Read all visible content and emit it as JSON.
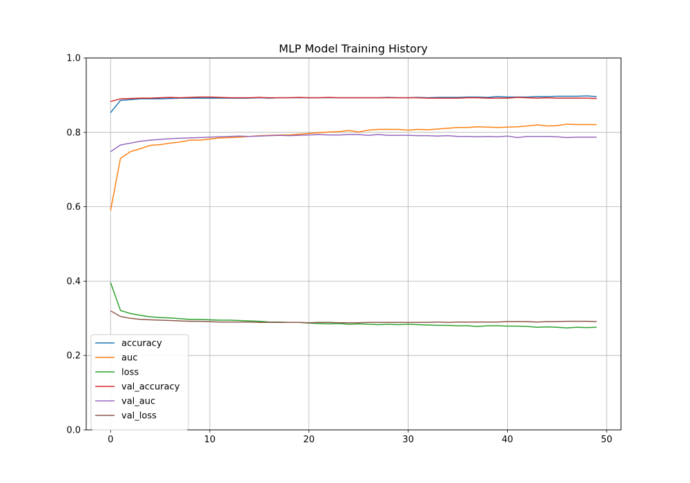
{
  "chart_data": {
    "type": "line",
    "title": "MLP Model Training History",
    "xlabel": "",
    "ylabel": "",
    "xlim": [
      -2.45,
      51.45
    ],
    "ylim": [
      0.0,
      1.0
    ],
    "xticks": [
      0,
      10,
      20,
      30,
      40,
      50
    ],
    "yticks": [
      0.0,
      0.2,
      0.4,
      0.6,
      0.8,
      1.0
    ],
    "xtick_labels": [
      "0",
      "10",
      "20",
      "30",
      "40",
      "50"
    ],
    "ytick_labels": [
      "0.0",
      "0.2",
      "0.4",
      "0.6",
      "0.8",
      "1.0"
    ],
    "grid": true,
    "legend_position": "bottom-left",
    "x": [
      0,
      1,
      2,
      3,
      4,
      5,
      6,
      7,
      8,
      9,
      10,
      11,
      12,
      13,
      14,
      15,
      16,
      17,
      18,
      19,
      20,
      21,
      22,
      23,
      24,
      25,
      26,
      27,
      28,
      29,
      30,
      31,
      32,
      33,
      34,
      35,
      36,
      37,
      38,
      39,
      40,
      41,
      42,
      43,
      44,
      45,
      46,
      47,
      48,
      49
    ],
    "series": [
      {
        "name": "accuracy",
        "color": "#1f77b4",
        "values": [
          0.853,
          0.886,
          0.888,
          0.89,
          0.89,
          0.89,
          0.891,
          0.892,
          0.892,
          0.892,
          0.892,
          0.892,
          0.892,
          0.892,
          0.892,
          0.893,
          0.892,
          0.893,
          0.893,
          0.893,
          0.893,
          0.893,
          0.893,
          0.893,
          0.893,
          0.893,
          0.893,
          0.893,
          0.894,
          0.893,
          0.893,
          0.894,
          0.893,
          0.894,
          0.894,
          0.894,
          0.895,
          0.895,
          0.894,
          0.896,
          0.895,
          0.895,
          0.895,
          0.896,
          0.896,
          0.897,
          0.897,
          0.897,
          0.898,
          0.896
        ]
      },
      {
        "name": "auc",
        "color": "#ff7f0e",
        "values": [
          0.59,
          0.73,
          0.748,
          0.756,
          0.765,
          0.767,
          0.771,
          0.774,
          0.779,
          0.779,
          0.782,
          0.785,
          0.786,
          0.787,
          0.789,
          0.791,
          0.792,
          0.793,
          0.793,
          0.795,
          0.797,
          0.799,
          0.801,
          0.802,
          0.805,
          0.801,
          0.806,
          0.808,
          0.808,
          0.808,
          0.806,
          0.808,
          0.807,
          0.809,
          0.811,
          0.813,
          0.813,
          0.815,
          0.814,
          0.813,
          0.814,
          0.815,
          0.817,
          0.82,
          0.817,
          0.818,
          0.822,
          0.821,
          0.821,
          0.821
        ]
      },
      {
        "name": "loss",
        "color": "#2ca02c",
        "values": [
          0.396,
          0.321,
          0.313,
          0.308,
          0.304,
          0.302,
          0.301,
          0.299,
          0.297,
          0.297,
          0.296,
          0.295,
          0.295,
          0.294,
          0.293,
          0.292,
          0.29,
          0.29,
          0.289,
          0.289,
          0.287,
          0.286,
          0.285,
          0.286,
          0.284,
          0.285,
          0.284,
          0.283,
          0.284,
          0.283,
          0.284,
          0.283,
          0.282,
          0.281,
          0.281,
          0.28,
          0.28,
          0.278,
          0.28,
          0.28,
          0.279,
          0.279,
          0.278,
          0.276,
          0.277,
          0.276,
          0.274,
          0.276,
          0.275,
          0.276
        ]
      },
      {
        "name": "val_accuracy",
        "color": "#d62728",
        "values": [
          0.883,
          0.89,
          0.891,
          0.892,
          0.892,
          0.893,
          0.894,
          0.893,
          0.894,
          0.895,
          0.895,
          0.894,
          0.893,
          0.893,
          0.893,
          0.894,
          0.893,
          0.893,
          0.893,
          0.894,
          0.893,
          0.893,
          0.894,
          0.893,
          0.893,
          0.893,
          0.893,
          0.893,
          0.893,
          0.893,
          0.893,
          0.893,
          0.892,
          0.892,
          0.892,
          0.892,
          0.893,
          0.893,
          0.892,
          0.892,
          0.892,
          0.894,
          0.893,
          0.892,
          0.893,
          0.892,
          0.892,
          0.892,
          0.892,
          0.891
        ]
      },
      {
        "name": "val_auc",
        "color": "#9467bd",
        "values": [
          0.748,
          0.766,
          0.771,
          0.776,
          0.779,
          0.781,
          0.783,
          0.784,
          0.785,
          0.786,
          0.787,
          0.788,
          0.789,
          0.79,
          0.789,
          0.79,
          0.791,
          0.792,
          0.791,
          0.792,
          0.793,
          0.794,
          0.793,
          0.793,
          0.794,
          0.794,
          0.792,
          0.794,
          0.792,
          0.792,
          0.792,
          0.791,
          0.791,
          0.79,
          0.791,
          0.789,
          0.789,
          0.788,
          0.789,
          0.788,
          0.79,
          0.786,
          0.789,
          0.789,
          0.789,
          0.788,
          0.786,
          0.787,
          0.787,
          0.787
        ]
      },
      {
        "name": "val_loss",
        "color": "#8c564b",
        "values": [
          0.32,
          0.305,
          0.3,
          0.297,
          0.296,
          0.295,
          0.294,
          0.293,
          0.292,
          0.292,
          0.291,
          0.29,
          0.29,
          0.29,
          0.29,
          0.289,
          0.289,
          0.289,
          0.289,
          0.289,
          0.288,
          0.289,
          0.289,
          0.288,
          0.288,
          0.288,
          0.289,
          0.289,
          0.289,
          0.289,
          0.289,
          0.289,
          0.289,
          0.29,
          0.289,
          0.29,
          0.29,
          0.29,
          0.29,
          0.29,
          0.291,
          0.291,
          0.291,
          0.29,
          0.291,
          0.291,
          0.292,
          0.292,
          0.292,
          0.291
        ]
      }
    ]
  }
}
